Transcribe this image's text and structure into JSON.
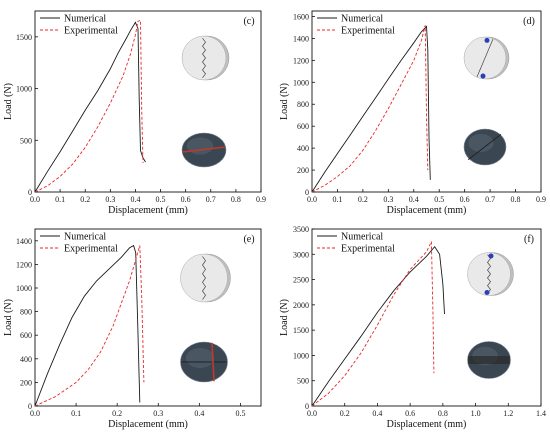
{
  "colors": {
    "numerical": "#1a1a1a",
    "experimental": "#e8272a"
  },
  "chart_data": [
    {
      "type": "line",
      "panel_label": "(c)",
      "xlabel": "Displacement (mm)",
      "ylabel": "Load (N)",
      "xlim": [
        0,
        0.9
      ],
      "ylim": [
        0,
        1750
      ],
      "xticks": [
        "0.0",
        "0.1",
        "0.2",
        "0.3",
        "0.4",
        "0.5",
        "0.6",
        "0.7",
        "0.8",
        "0.9"
      ],
      "xtick_values": [
        0,
        0.1,
        0.2,
        0.3,
        0.4,
        0.5,
        0.6,
        0.7,
        0.8,
        0.9
      ],
      "yticks": [
        "0",
        "500",
        "1000",
        "1500"
      ],
      "ytick_values": [
        0,
        500,
        1000,
        1500
      ],
      "legend": [
        "Numerical",
        "Experimental"
      ],
      "series": [
        {
          "name": "Numerical",
          "style": "solid",
          "x": [
            0,
            0.05,
            0.1,
            0.15,
            0.2,
            0.25,
            0.3,
            0.33,
            0.36,
            0.38,
            0.4,
            0.41,
            0.415,
            0.42,
            0.43,
            0.44
          ],
          "y": [
            0,
            200,
            390,
            590,
            790,
            980,
            1190,
            1340,
            1470,
            1560,
            1640,
            1580,
            900,
            400,
            330,
            290
          ]
        },
        {
          "name": "Experimental",
          "style": "dashed",
          "x": [
            0,
            0.05,
            0.1,
            0.15,
            0.2,
            0.25,
            0.3,
            0.35,
            0.38,
            0.4,
            0.41,
            0.42,
            0.425,
            0.43
          ],
          "y": [
            0,
            60,
            150,
            270,
            430,
            630,
            860,
            1120,
            1330,
            1520,
            1650,
            1660,
            800,
            280
          ]
        }
      ]
    },
    {
      "type": "line",
      "panel_label": "(d)",
      "xlabel": "Displacement (mm)",
      "ylabel": "Load (N)",
      "xlim": [
        0,
        0.9
      ],
      "ylim": [
        0,
        1650
      ],
      "xticks": [
        "0.0",
        "0.1",
        "0.2",
        "0.3",
        "0.4",
        "0.5",
        "0.6",
        "0.7",
        "0.8",
        "0.9"
      ],
      "xtick_values": [
        0,
        0.1,
        0.2,
        0.3,
        0.4,
        0.5,
        0.6,
        0.7,
        0.8,
        0.9
      ],
      "yticks": [
        "0",
        "200",
        "400",
        "600",
        "800",
        "1000",
        "1200",
        "1400",
        "1600"
      ],
      "ytick_values": [
        0,
        200,
        400,
        600,
        800,
        1000,
        1200,
        1400,
        1600
      ],
      "legend": [
        "Numerical",
        "Experimental"
      ],
      "series": [
        {
          "name": "Numerical",
          "style": "solid",
          "x": [
            0,
            0.05,
            0.1,
            0.15,
            0.2,
            0.25,
            0.3,
            0.35,
            0.4,
            0.43,
            0.45,
            0.455,
            0.46,
            0.465
          ],
          "y": [
            0,
            180,
            350,
            520,
            690,
            860,
            1030,
            1200,
            1360,
            1460,
            1510,
            1300,
            500,
            110
          ]
        },
        {
          "name": "Experimental",
          "style": "dashed",
          "x": [
            0,
            0.05,
            0.1,
            0.15,
            0.2,
            0.25,
            0.3,
            0.35,
            0.4,
            0.43,
            0.445,
            0.45,
            0.455
          ],
          "y": [
            0,
            60,
            140,
            240,
            380,
            560,
            760,
            980,
            1200,
            1380,
            1520,
            700,
            200
          ]
        }
      ]
    },
    {
      "type": "line",
      "panel_label": "(e)",
      "xlabel": "Displacement (mm)",
      "ylabel": "Load (N)",
      "xlim": [
        0,
        0.55
      ],
      "ylim": [
        0,
        1500
      ],
      "xticks": [
        "0.0",
        "0.1",
        "0.2",
        "0.3",
        "0.4",
        "0.5"
      ],
      "xtick_values": [
        0,
        0.1,
        0.2,
        0.3,
        0.4,
        0.5
      ],
      "yticks": [
        "0",
        "200",
        "400",
        "600",
        "800",
        "1000",
        "1200",
        "1400"
      ],
      "ytick_values": [
        0,
        200,
        400,
        600,
        800,
        1000,
        1200,
        1400
      ],
      "legend": [
        "Numerical",
        "Experimental"
      ],
      "series": [
        {
          "name": "Numerical",
          "style": "solid",
          "x": [
            0,
            0.03,
            0.06,
            0.09,
            0.12,
            0.15,
            0.18,
            0.21,
            0.23,
            0.24,
            0.245,
            0.25,
            0.255
          ],
          "y": [
            0,
            270,
            520,
            750,
            930,
            1060,
            1160,
            1260,
            1340,
            1360,
            1300,
            700,
            30
          ]
        },
        {
          "name": "Experimental",
          "style": "dashed",
          "x": [
            0,
            0.05,
            0.1,
            0.13,
            0.16,
            0.19,
            0.21,
            0.23,
            0.245,
            0.255,
            0.26,
            0.265
          ],
          "y": [
            0,
            80,
            200,
            310,
            460,
            680,
            870,
            1060,
            1240,
            1360,
            900,
            200
          ]
        }
      ]
    },
    {
      "type": "line",
      "panel_label": "(f)",
      "xlabel": "Displacement (mm)",
      "ylabel": "Load (N)",
      "xlim": [
        0,
        1.4
      ],
      "ylim": [
        0,
        3500
      ],
      "xticks": [
        "0.0",
        "0.2",
        "0.4",
        "0.6",
        "0.8",
        "1.0",
        "1.2",
        "1.4"
      ],
      "xtick_values": [
        0,
        0.2,
        0.4,
        0.6,
        0.8,
        1.0,
        1.2,
        1.4
      ],
      "yticks": [
        "0",
        "500",
        "1000",
        "1500",
        "2000",
        "2500",
        "3000",
        "3500"
      ],
      "ytick_values": [
        0,
        500,
        1000,
        1500,
        2000,
        2500,
        3000,
        3500
      ],
      "legend": [
        "Numerical",
        "Experimental"
      ],
      "series": [
        {
          "name": "Numerical",
          "style": "solid",
          "x": [
            0,
            0.1,
            0.2,
            0.3,
            0.4,
            0.5,
            0.6,
            0.7,
            0.75,
            0.78,
            0.8,
            0.81
          ],
          "y": [
            0,
            480,
            930,
            1380,
            1850,
            2280,
            2650,
            2960,
            3150,
            3000,
            2400,
            1820
          ]
        },
        {
          "name": "Experimental",
          "style": "dashed",
          "x": [
            0,
            0.1,
            0.2,
            0.3,
            0.4,
            0.5,
            0.6,
            0.7,
            0.73,
            0.74,
            0.745
          ],
          "y": [
            0,
            250,
            600,
            1050,
            1600,
            2200,
            2700,
            3050,
            3250,
            1800,
            650
          ]
        }
      ]
    }
  ]
}
